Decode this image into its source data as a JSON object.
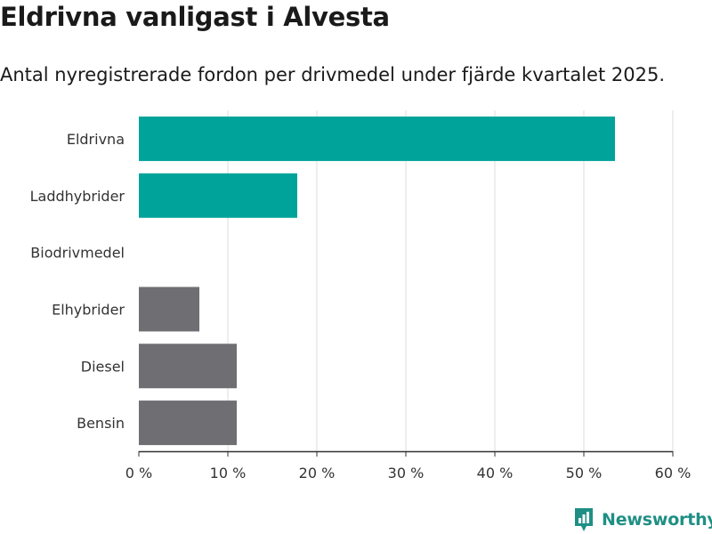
{
  "header": {
    "title": "Eldrivna vanligast i Alvesta",
    "subtitle": "Antal nyregistrerade fordon per drivmedel under fjärde kvartalet 2025."
  },
  "chart_data": {
    "type": "bar",
    "orientation": "horizontal",
    "categories": [
      "Eldrivna",
      "Laddhybrider",
      "Biodrivmedel",
      "Elhybrider",
      "Diesel",
      "Bensin"
    ],
    "values": [
      53.5,
      17.8,
      0,
      6.8,
      11,
      11
    ],
    "unit": "%",
    "bar_colors": [
      "#00a39a",
      "#00a39a",
      "#00a39a",
      "#6e6e73",
      "#6e6e73",
      "#6e6e73"
    ],
    "xlim": [
      0,
      60
    ],
    "xticks": [
      0,
      10,
      20,
      30,
      40,
      50,
      60
    ],
    "xtick_labels": [
      "0 %",
      "10 %",
      "20 %",
      "30 %",
      "40 %",
      "50 %",
      "60 %"
    ],
    "grid": true,
    "title": "Eldrivna vanligast i Alvesta",
    "xlabel": "",
    "ylabel": ""
  },
  "branding": {
    "name": "Newsworthy",
    "icon": "newsworthy-logo-icon",
    "color": "#1f8f85"
  }
}
